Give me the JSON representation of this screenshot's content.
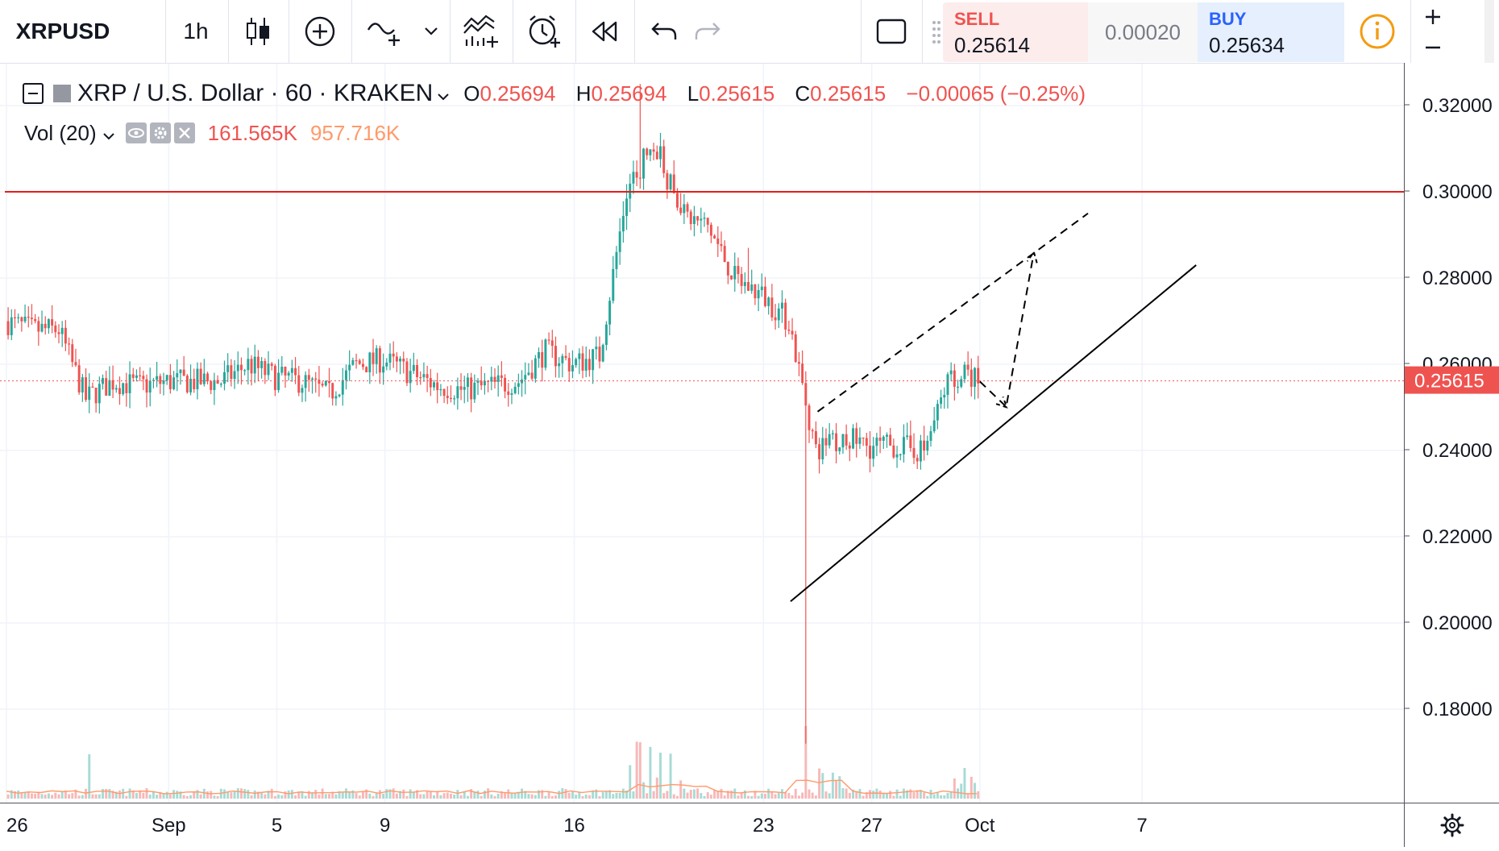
{
  "toolbar": {
    "symbol": "XRPUSD",
    "interval": "1h",
    "icons": [
      "candles-icon",
      "add-indicator-icon",
      "compare-icon",
      "chevron-down-icon",
      "indicators-icon",
      "alert-icon",
      "replay-icon",
      "undo-icon",
      "redo-icon",
      "fullscreen-icon"
    ]
  },
  "trade": {
    "sell_label": "SELL",
    "sell_price": "0.25614",
    "spread": "0.00020",
    "buy_label": "BUY",
    "buy_price": "0.25634",
    "sell_color": "#ef5350",
    "buy_color": "#2962ff"
  },
  "legend": {
    "title": "XRP / U.S. Dollar · 60 · KRAKEN",
    "o_key": "O",
    "o_val": "0.25694",
    "h_key": "H",
    "h_val": "0.25694",
    "l_key": "L",
    "l_val": "0.25615",
    "c_key": "C",
    "c_val": "0.25615",
    "change": "−0.00065 (−0.25%)"
  },
  "volume_legend": {
    "label": "Vol (20)",
    "volume": "161.565K",
    "volume_ma": "957.716K"
  },
  "colors": {
    "up": "#26a69a",
    "down": "#ef5350",
    "resistance": "#e0201c",
    "trendline": "#000000",
    "ma": "#ff9a6a"
  },
  "chart_data": {
    "type": "candlestick",
    "symbol": "XRP / U.S. Dollar",
    "interval": "60",
    "exchange": "KRAKEN",
    "ylim": [
      0.165,
      0.328
    ],
    "y_ticks": [
      "0.32000",
      "0.30000",
      "0.28000",
      "0.26000",
      "0.24000",
      "0.22000",
      "0.20000",
      "0.18000"
    ],
    "x_ticks": [
      "26",
      "Sep",
      "5",
      "9",
      "16",
      "23",
      "27",
      "Oct",
      "7"
    ],
    "last_price": "0.25615",
    "last_price_color": "#ef5350",
    "horizontal_lines": [
      {
        "y": 0.3,
        "color": "#e0201c"
      }
    ],
    "trend_lines": [
      {
        "style": "solid",
        "from": [
          "Sep 24",
          0.205
        ],
        "to": [
          "Oct 9",
          0.283
        ]
      },
      {
        "style": "dashed",
        "from": [
          "Sep 25",
          0.249
        ],
        "to": [
          "Oct 5",
          0.295
        ]
      },
      {
        "style": "dashed",
        "from": [
          "Oct 1",
          0.256
        ],
        "to": [
          "Oct 2",
          0.25
        ]
      },
      {
        "style": "dashed",
        "from": [
          "Oct 2",
          0.251
        ],
        "to": [
          "Oct 3",
          0.286
        ]
      }
    ],
    "price_path": [
      [
        "Aug 26",
        0.27
      ],
      [
        "Aug 27",
        0.268
      ],
      [
        "Aug 28",
        0.268
      ],
      [
        "Aug 29",
        0.252
      ],
      [
        "Aug 30",
        0.256
      ],
      [
        "Aug 31",
        0.255
      ],
      [
        "Sep 1",
        0.256
      ],
      [
        "Sep 2",
        0.256
      ],
      [
        "Sep 3",
        0.256
      ],
      [
        "Sep 4",
        0.26
      ],
      [
        "Sep 5",
        0.257
      ],
      [
        "Sep 6",
        0.256
      ],
      [
        "Sep 7",
        0.253
      ],
      [
        "Sep 8",
        0.26
      ],
      [
        "Sep 9",
        0.261
      ],
      [
        "Sep 10",
        0.258
      ],
      [
        "Sep 11",
        0.255
      ],
      [
        "Sep 12",
        0.254
      ],
      [
        "Sep 13",
        0.255
      ],
      [
        "Sep 14",
        0.256
      ],
      [
        "Sep 15",
        0.263
      ],
      [
        "Sep 16",
        0.26
      ],
      [
        "Sep 17",
        0.262
      ],
      [
        "Sep 18",
        0.3
      ],
      [
        "Sep 19",
        0.312
      ],
      [
        "Sep 20",
        0.295
      ],
      [
        "Sep 21",
        0.292
      ],
      [
        "Sep 22",
        0.28
      ],
      [
        "Sep 23",
        0.276
      ],
      [
        "Sep 24",
        0.27
      ],
      [
        "Sep 25",
        0.24
      ],
      [
        "Sep 26",
        0.243
      ],
      [
        "Sep 27",
        0.241
      ],
      [
        "Sep 28",
        0.241
      ],
      [
        "Sep 29",
        0.24
      ],
      [
        "Sep 30",
        0.258
      ],
      [
        "Oct 1",
        0.256
      ]
    ],
    "events": [
      {
        "date": "Sep 18",
        "high": 0.325
      },
      {
        "date": "Sep 24",
        "low": 0.172
      },
      {
        "date": "Sep 22",
        "high": 0.287
      }
    ]
  }
}
